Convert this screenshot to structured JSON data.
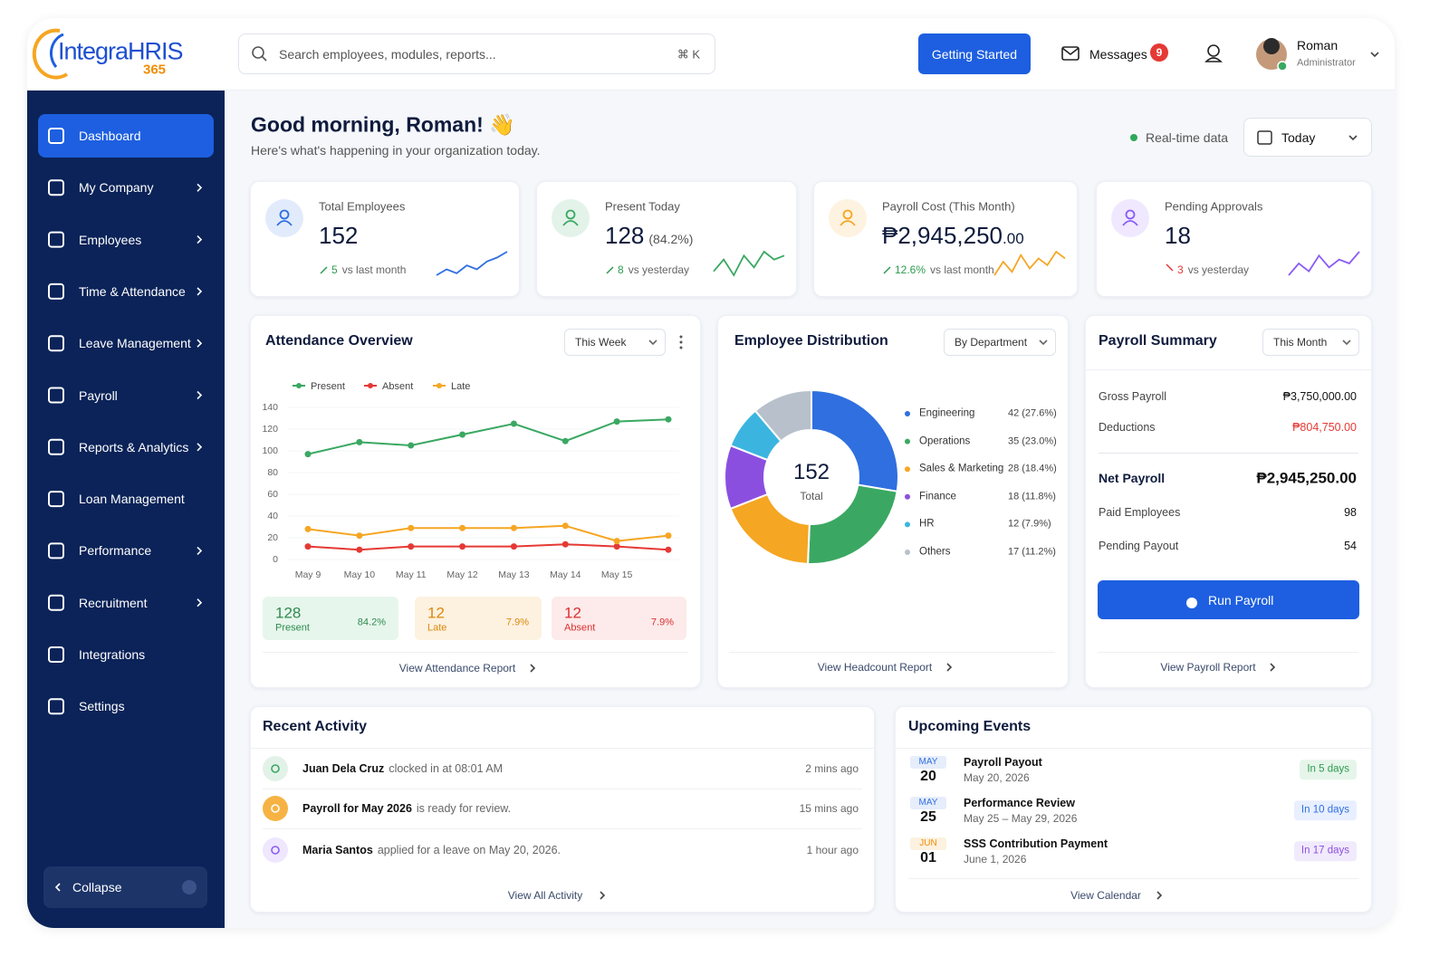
{
  "header": {
    "logo": "IntegraHRIS",
    "logo_suffix": "365",
    "search_placeholder": "Search employees, modules, reports...",
    "search_shortcut": "⌘ K",
    "cta": "Getting Started",
    "messages": "Messages",
    "messages_badge": 9,
    "user_name": "Roman",
    "user_role": "Administrator"
  },
  "sidebar": {
    "items": [
      {
        "label": "Dashboard",
        "active": true,
        "has_submenu": false
      },
      {
        "label": "My Company",
        "has_submenu": true
      },
      {
        "label": "Employees",
        "has_submenu": true
      },
      {
        "label": "Time & Attendance",
        "has_submenu": true
      },
      {
        "label": "Leave Management",
        "has_submenu": true
      },
      {
        "label": "Payroll",
        "has_submenu": true
      },
      {
        "label": "Reports & Analytics",
        "has_submenu": true
      },
      {
        "label": "Loan Management",
        "has_submenu": false
      },
      {
        "label": "Performance",
        "has_submenu": true
      },
      {
        "label": "Recruitment",
        "has_submenu": true
      },
      {
        "label": "Integrations",
        "has_submenu": false
      },
      {
        "label": "Settings",
        "has_submenu": false
      }
    ],
    "collapse": "Collapse"
  },
  "greeting": {
    "title": "Good morning, Roman! 👋",
    "subtitle": "Here's what's happening in your organization today.",
    "realtime": "Real-time data",
    "date_filter": "Today"
  },
  "kpis": [
    {
      "label": "Total Employees",
      "value": "152",
      "change": "5",
      "change_text": "vs last month",
      "trend": "up",
      "color": "#2f6fe0",
      "sparkline": [
        2,
        5,
        3,
        7,
        5,
        9,
        11,
        14
      ]
    },
    {
      "label": "Present Today",
      "value": "128",
      "value_note": "(84.2%)",
      "change": "8",
      "change_text": "vs yesterday",
      "trend": "up",
      "color": "#3aa862",
      "sparkline": [
        5,
        8,
        4,
        9,
        6,
        10,
        8,
        9
      ]
    },
    {
      "label": "Payroll Cost (This Month)",
      "value": "₱2,945,250",
      "value_decimals": ".00",
      "change": "12.6%",
      "change_text": "vs last month",
      "trend": "up",
      "color": "#f5a623",
      "sparkline": [
        3,
        7,
        4,
        9,
        5,
        8,
        6,
        10,
        8
      ]
    },
    {
      "label": "Pending Approvals",
      "value": "18",
      "change": "3",
      "change_text": "vs yesterday",
      "trend": "down",
      "color": "#8b5cf6",
      "sparkline": [
        4,
        7,
        5,
        9,
        6,
        8,
        7,
        10
      ]
    }
  ],
  "chart_data": [
    {
      "type": "line",
      "title": "Attendance Overview",
      "filter": "This Week",
      "categories": [
        "May 9",
        "May 10",
        "May 11",
        "May 12",
        "May 13",
        "May 14",
        "May 15",
        null
      ],
      "series": [
        {
          "name": "Present",
          "color": "#3aa862",
          "values": [
            97,
            108,
            105,
            115,
            125,
            109,
            127,
            129
          ]
        },
        {
          "name": "Absent",
          "color": "#e53935",
          "values": [
            12,
            9,
            12,
            12,
            12,
            14,
            12,
            9
          ]
        },
        {
          "name": "Late",
          "color": "#f5a623",
          "values": [
            28,
            22,
            29,
            29,
            29,
            31,
            17,
            22
          ]
        }
      ],
      "ylim": [
        0,
        140
      ],
      "yticks": [
        0,
        20,
        40,
        60,
        80,
        100,
        120,
        140
      ],
      "grid": true,
      "summary": [
        {
          "value": 128,
          "label": "Present",
          "percent": "84.2%",
          "color": "#2e8b4e",
          "bg": "#e7f6ec"
        },
        {
          "value": 12,
          "label": "Late",
          "percent": "7.9%",
          "color": "#d98a0b",
          "bg": "#fdf1e0"
        },
        {
          "value": 12,
          "label": "Absent",
          "percent": "7.9%",
          "color": "#d93030",
          "bg": "#fdeaea"
        }
      ],
      "link": "View Attendance Report"
    },
    {
      "type": "pie",
      "donut": true,
      "title": "Employee Distribution",
      "filter": "By Department",
      "center_value": 152,
      "center_label": "Total",
      "categories": [
        "Engineering",
        "Operations",
        "Sales & Marketing",
        "Finance",
        "HR",
        "Others"
      ],
      "values": [
        42,
        35,
        28,
        18,
        12,
        17
      ],
      "percent_labels": [
        "(27.6%)",
        "(23.0%)",
        "(18.4%)",
        "(11.8%)",
        "(7.9%)",
        "(11.2%)"
      ],
      "colors": [
        "#2f6fe0",
        "#3aa862",
        "#f5a623",
        "#8b4fe0",
        "#3bb5e0",
        "#b8c0cc"
      ],
      "link": "View Headcount Report"
    }
  ],
  "payroll_summary": {
    "title": "Payroll Summary",
    "filter": "This Month",
    "rows": [
      {
        "label": "Gross Payroll",
        "value": "₱3,750,000.00"
      },
      {
        "label": "Deductions",
        "value": "₱804,750.00",
        "negative": true
      },
      {
        "label": "Net Payroll",
        "value": "₱2,945,250.00",
        "emphasis": true
      },
      {
        "label": "Paid Employees",
        "value": "98"
      },
      {
        "label": "Pending Payout",
        "value": "54"
      }
    ],
    "button": "Run Payroll",
    "link": "View Payroll Report"
  },
  "recent_activity": {
    "title": "Recent Activity",
    "items": [
      {
        "subject": "Juan Dela Cruz",
        "text": "clocked in at 08:01 AM",
        "time": "2 mins ago",
        "color": "#3aa862"
      },
      {
        "subject": "Payroll for May 2026",
        "text": "is ready for review.",
        "time": "15 mins ago",
        "color": "#f5a623"
      },
      {
        "subject": "Maria Santos",
        "text": "applied for a leave on May 20, 2026.",
        "time": "1 hour ago",
        "color": "#8b5cf6"
      }
    ],
    "link": "View All Activity"
  },
  "upcoming_events": {
    "title": "Upcoming Events",
    "items": [
      {
        "month": "MAY",
        "day": "20",
        "title": "Payroll Payout",
        "date": "May 20, 2026",
        "badge": "In 5 days",
        "month_color": "#2f6fe0",
        "badge_color": "#2e9b4f",
        "badge_bg": "#e6f5ea"
      },
      {
        "month": "MAY",
        "day": "25",
        "title": "Performance Review",
        "date": "May 25 – May 29, 2026",
        "badge": "In 10 days",
        "month_color": "#2f6fe0",
        "badge_color": "#2f6fe0",
        "badge_bg": "#e8efff"
      },
      {
        "month": "JUN",
        "day": "01",
        "title": "SSS Contribution Payment",
        "date": "June 1, 2026",
        "badge": "In 17 days",
        "month_color": "#f08c00",
        "badge_color": "#8b4fe0",
        "badge_bg": "#f1eafd"
      }
    ],
    "link": "View Calendar"
  }
}
